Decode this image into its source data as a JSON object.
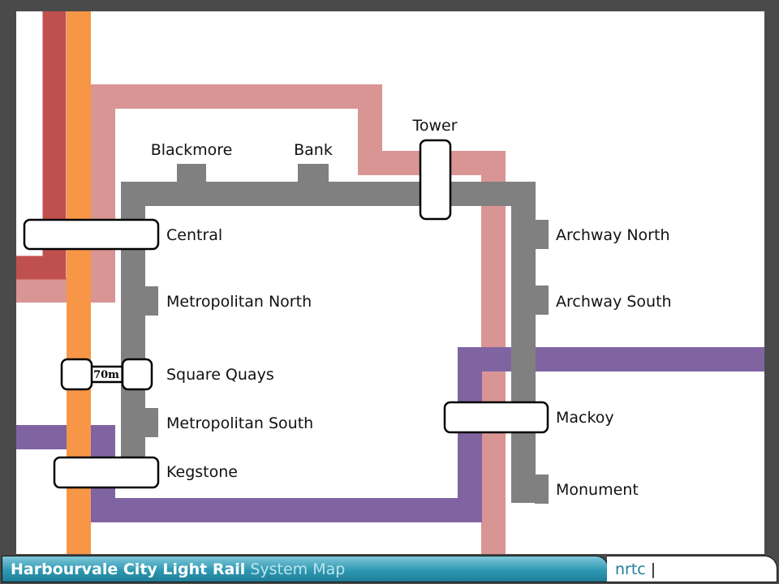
{
  "map": {
    "title": "Harbourvale City Light Rail",
    "subtitle": "System Map",
    "brand": "nrtc",
    "brand_separator": "|",
    "walking_distance": "70m"
  },
  "line_colors": {
    "red": "#c0504d",
    "orange": "#f79646",
    "pink": "#d99594",
    "grey": "#808080",
    "purple": "#8064a2"
  },
  "stations": {
    "blackmore": "Blackmore",
    "bank": "Bank",
    "tower": "Tower",
    "central": "Central",
    "metropolitan_north": "Metropolitan North",
    "square_quays": "Square Quays",
    "metropolitan_south": "Metropolitan South",
    "kegstone": "Kegstone",
    "archway_north": "Archway North",
    "archway_south": "Archway South",
    "mackoy": "Mackoy",
    "monument": "Monument"
  }
}
